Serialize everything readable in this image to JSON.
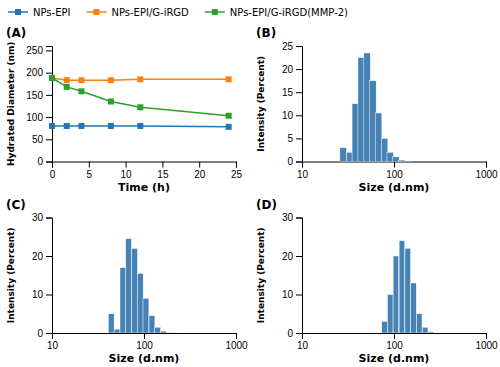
{
  "chart_data": [
    {
      "type": "line",
      "title": "(A)",
      "xlabel": "Time (h)",
      "ylabel": "Hydrated Diameter (nm)",
      "x": [
        0,
        2,
        4,
        8,
        12,
        24
      ],
      "series": [
        {
          "name": "NPs-EPI",
          "values": [
            80,
            80,
            80,
            80,
            80,
            78
          ],
          "errors": [
            3,
            2,
            2,
            2,
            2,
            2
          ]
        },
        {
          "name": "NPs-EPI/G-iRGD",
          "values": [
            188,
            183,
            183,
            183,
            185,
            185
          ],
          "errors": [
            4,
            3,
            3,
            3,
            3,
            3
          ]
        },
        {
          "name": "NPs-EPI/G-iRGD(MMP-2)",
          "values": [
            188,
            168,
            158,
            135,
            122,
            103
          ],
          "errors": [
            4,
            4,
            4,
            4,
            4,
            4
          ]
        }
      ],
      "xlim": [
        0,
        25
      ],
      "ylim": [
        0,
        260
      ],
      "xticks": [
        0,
        5,
        10,
        15,
        20,
        25
      ],
      "yticks": [
        0,
        50,
        100,
        150,
        200,
        250
      ],
      "marker": "square",
      "legend": "upper left"
    },
    {
      "type": "bar",
      "title": "(B)",
      "xlabel": "Size (d.nm)",
      "ylabel": "Intensity (Percent)",
      "x": [
        28,
        33,
        38,
        44,
        51,
        59,
        68,
        79,
        91,
        105,
        122,
        141
      ],
      "values": [
        3.0,
        2.0,
        12.5,
        22.5,
        23.5,
        17.5,
        10.5,
        5.0,
        2.0,
        1.0,
        0.3,
        0.1
      ],
      "log": "x",
      "xlim": [
        10,
        1000
      ],
      "xticks": [
        10,
        100,
        1000
      ],
      "ylim": [
        0,
        25
      ],
      "yticks": [
        0,
        5,
        10,
        15,
        20,
        25
      ]
    },
    {
      "type": "bar",
      "title": "(C)",
      "xlabel": "Size (d.nm)",
      "ylabel": "Intensity (Percent)",
      "x": [
        44,
        51,
        59,
        68,
        79,
        91,
        105,
        122,
        141,
        163,
        188,
        218
      ],
      "values": [
        5.0,
        1.0,
        17.0,
        24.5,
        22.0,
        15.5,
        9.0,
        4.5,
        1.5,
        0.5,
        0.1,
        0.05
      ],
      "log": "x",
      "xlim": [
        10,
        1000
      ],
      "xticks": [
        10,
        100,
        1000
      ],
      "ylim": [
        0,
        30
      ],
      "yticks": [
        0,
        10,
        20,
        30
      ]
    },
    {
      "type": "bar",
      "title": "(D)",
      "xlabel": "Size (d.nm)",
      "ylabel": "Intensity (Percent)",
      "x": [
        79,
        91,
        105,
        122,
        141,
        163,
        188,
        218,
        252
      ],
      "values": [
        3.0,
        10.0,
        20.0,
        24.0,
        22.0,
        13.0,
        5.0,
        1.5,
        0.3
      ],
      "log": "x",
      "xlim": [
        10,
        1000
      ],
      "xticks": [
        10,
        100,
        1000
      ],
      "ylim": [
        0,
        30
      ],
      "yticks": [
        0,
        10,
        20,
        30
      ]
    }
  ]
}
